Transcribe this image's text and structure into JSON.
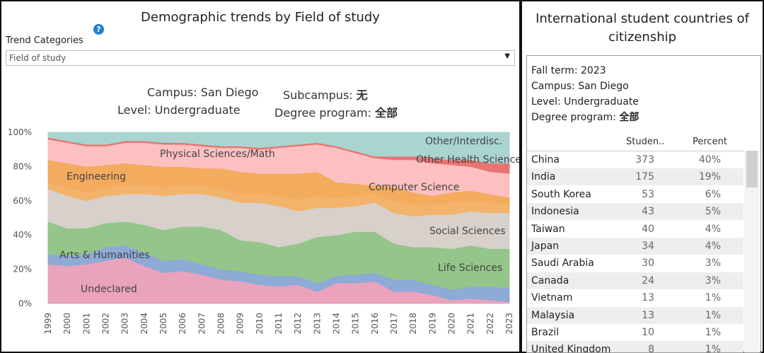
{
  "dashboard": {
    "trend_label": "Trend Categories",
    "dropdown": "Field of study",
    "help": "?"
  },
  "chart_data": {
    "type": "stacked_area",
    "title": "Demographic trends by Field of study",
    "filters": [
      {
        "label": "Campus:",
        "value": "San Diego"
      },
      {
        "label": "Subcampus:",
        "value": "无"
      },
      {
        "label": "Level:",
        "value": "Undergraduate"
      },
      {
        "label": "Degree program:",
        "value": "全部"
      }
    ],
    "x": [
      1999,
      2000,
      2001,
      2002,
      2003,
      2004,
      2005,
      2006,
      2007,
      2008,
      2009,
      2010,
      2011,
      2012,
      2013,
      2014,
      2015,
      2016,
      2017,
      2018,
      2019,
      2020,
      2021,
      2022,
      2023
    ],
    "xlim": [
      1999,
      2023
    ],
    "ylim": [
      0,
      100
    ],
    "yticks": [
      {
        "value": 0,
        "label": "0%"
      },
      {
        "value": 20,
        "label": "20%"
      },
      {
        "value": 40,
        "label": "40%"
      },
      {
        "value": 60,
        "label": "60%"
      },
      {
        "value": 80,
        "label": "80%"
      },
      {
        "value": 100,
        "label": "100%"
      }
    ],
    "series": [
      {
        "name": "Undeclared",
        "color": "#e9a3bc",
        "values": [
          23,
          22,
          23,
          25,
          27,
          22,
          18,
          19,
          17,
          14,
          13,
          11,
          10,
          11,
          7,
          12,
          12,
          13,
          7,
          7,
          5,
          2,
          3,
          2,
          1
        ]
      },
      {
        "name": "Arts & Humanities",
        "color": "#8eaad6",
        "values": [
          6,
          6,
          6,
          8,
          7,
          8,
          7,
          7,
          6,
          6,
          6,
          6,
          6,
          5,
          5,
          4,
          5,
          5,
          7,
          7,
          6,
          6,
          7,
          8,
          8
        ]
      },
      {
        "name": "Life Sciences",
        "color": "#94c58a",
        "values": [
          19,
          16,
          15,
          14,
          14,
          16,
          18,
          19,
          22,
          23,
          18,
          19,
          17,
          19,
          27,
          24,
          25,
          24,
          21,
          19,
          22,
          24,
          24,
          22,
          23
        ]
      },
      {
        "name": "Social Sciences",
        "color": "#d8d0cb",
        "values": [
          19,
          19,
          16,
          16,
          16,
          18,
          20,
          19,
          19,
          19,
          22,
          23,
          24,
          19,
          17,
          16,
          15,
          17,
          18,
          18,
          19,
          20,
          20,
          21,
          21
        ]
      },
      {
        "name": "Computer Science",
        "color": "#f4b36a",
        "values": [
          4,
          5,
          5,
          5,
          5,
          5,
          5,
          5,
          5,
          5,
          5,
          5,
          6,
          7,
          7,
          6,
          6,
          5,
          7,
          7,
          6,
          7,
          6,
          6,
          5
        ]
      },
      {
        "name": "Engineering",
        "color": "#f3ab5e",
        "values": [
          13,
          14,
          15,
          13,
          13,
          12,
          12,
          11,
          10,
          12,
          13,
          12,
          13,
          15,
          14,
          9,
          7,
          5,
          8,
          7,
          5,
          6,
          6,
          5,
          4
        ]
      },
      {
        "name": "Physical Sciences/Math",
        "color": "#fdc0c0",
        "values": [
          12,
          12,
          12,
          11,
          12,
          13,
          13,
          13,
          13,
          12,
          14,
          14,
          15,
          16,
          16,
          20,
          18,
          16,
          16,
          19,
          19,
          16,
          14,
          13,
          14
        ]
      },
      {
        "name": "Other Health Science",
        "color": "#e77472",
        "values": [
          1,
          1,
          1,
          1,
          1,
          1,
          1,
          1,
          1,
          1,
          1,
          1,
          1,
          1,
          1,
          1,
          1,
          1,
          2,
          2,
          3,
          3,
          4,
          5,
          6
        ]
      },
      {
        "name": "Other/Interdisc.",
        "color": "#a9d4d0",
        "values": [
          3,
          5,
          7,
          7,
          5,
          5,
          6,
          6,
          7,
          8,
          8,
          9,
          8,
          7,
          6,
          8,
          11,
          14,
          14,
          14,
          15,
          16,
          16,
          18,
          18
        ]
      }
    ]
  },
  "panel": {
    "title": "International student countries of citizenship",
    "filters": [
      {
        "label": "Fall term:",
        "value": "2023"
      },
      {
        "label": "Campus:",
        "value": "San Diego"
      },
      {
        "label": "Level:",
        "value": "Undergraduate"
      },
      {
        "label": "Degree program:",
        "value": "全部"
      }
    ]
  },
  "table": {
    "columns": [
      "Studen..",
      "Percent"
    ],
    "rows": [
      [
        "China",
        "373",
        "40%"
      ],
      [
        "India",
        "175",
        "19%"
      ],
      [
        "South Korea",
        "53",
        "6%"
      ],
      [
        "Indonesia",
        "43",
        "5%"
      ],
      [
        "Taiwan",
        "40",
        "4%"
      ],
      [
        "Japan",
        "34",
        "4%"
      ],
      [
        "Saudi Arabia",
        "30",
        "3%"
      ],
      [
        "Canada",
        "24",
        "3%"
      ],
      [
        "Vietnam",
        "13",
        "1%"
      ],
      [
        "Malaysia",
        "13",
        "1%"
      ],
      [
        "Brazil",
        "10",
        "1%"
      ],
      [
        "United Kingdom",
        "8",
        "1%"
      ]
    ]
  }
}
